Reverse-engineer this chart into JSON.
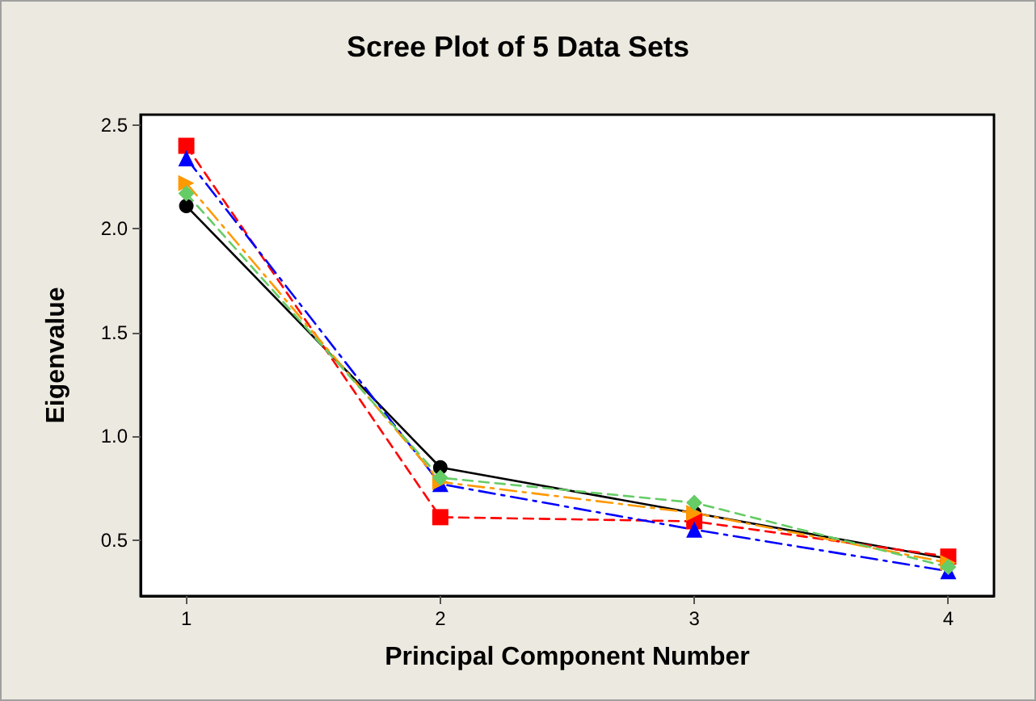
{
  "chart_data": {
    "type": "line",
    "title": "Scree Plot of 5 Data Sets",
    "xlabel": "Principal Component Number",
    "ylabel": "Eigenvalue",
    "x": [
      1,
      2,
      3,
      4
    ],
    "xlim": [
      0.82,
      4.18
    ],
    "xticks": [
      1,
      2,
      3,
      4
    ],
    "ylim": [
      0.23,
      2.55
    ],
    "yticks": [
      0.5,
      {
        "value": 1,
        "label": "1.0"
      },
      1.5,
      {
        "value": 2,
        "label": "2.0"
      },
      2.5
    ],
    "grid": false,
    "series": [
      {
        "color": "#000000",
        "marker": "circle",
        "line_style": "solid",
        "values": [
          2.11,
          0.85,
          0.63,
          0.41
        ]
      },
      {
        "color": "#ff0000",
        "marker": "square",
        "line_style": "dashed",
        "values": [
          2.4,
          0.61,
          0.59,
          0.42
        ]
      },
      {
        "color": "#0000ff",
        "marker": "triangle",
        "line_style": "dashdot",
        "values": [
          2.34,
          0.77,
          0.55,
          0.35
        ]
      },
      {
        "color": "#ff9900",
        "marker": "triangle-right",
        "line_style": "dashdot",
        "values": [
          2.22,
          0.78,
          0.63,
          0.39
        ]
      },
      {
        "color": "#66cc66",
        "marker": "diamond",
        "line_style": "dashed",
        "values": [
          2.17,
          0.8,
          0.68,
          0.37
        ]
      }
    ]
  }
}
